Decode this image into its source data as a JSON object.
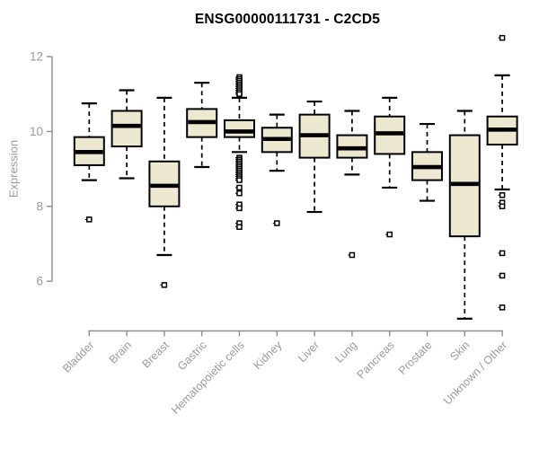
{
  "page": {
    "background": "#ffffff"
  },
  "chart_data": {
    "type": "boxplot",
    "title": "ENSG00000111731 - C2CD5",
    "ylabel": "Expression",
    "xlabel": "",
    "yticks": [
      6,
      8,
      10,
      12
    ],
    "y_axis_range": [
      6,
      12
    ],
    "grid": false,
    "legend": "none",
    "colors": {
      "box_fill": "#EDE8D0",
      "box_border": "#000000",
      "median": "#000000",
      "whisker": "#000000",
      "outlier_fill": "#ffffff",
      "axis": "#8f8f8f",
      "tick_text": "#9a9a9a",
      "title_text": "#000000"
    },
    "categories": [
      "Bladder",
      "Brain",
      "Breast",
      "Gastric",
      "Hematopoietic cells",
      "Kidney",
      "Liver",
      "Lung",
      "Pancreas",
      "Prostate",
      "Skin",
      "Unknown / Other"
    ],
    "boxes": [
      {
        "label": "Bladder",
        "whisker_low": 8.7,
        "q1": 9.1,
        "median": 9.45,
        "q3": 9.85,
        "whisker_high": 10.75,
        "outliers": [
          7.65
        ]
      },
      {
        "label": "Brain",
        "whisker_low": 8.75,
        "q1": 9.6,
        "median": 10.15,
        "q3": 10.55,
        "whisker_high": 11.1,
        "outliers": []
      },
      {
        "label": "Breast",
        "whisker_low": 6.7,
        "q1": 8.0,
        "median": 8.55,
        "q3": 9.2,
        "whisker_high": 10.9,
        "outliers": [
          5.9
        ]
      },
      {
        "label": "Gastric",
        "whisker_low": 9.05,
        "q1": 9.85,
        "median": 10.25,
        "q3": 10.6,
        "whisker_high": 11.3,
        "outliers": []
      },
      {
        "label": "Hematopoietic cells",
        "whisker_low": 9.45,
        "q1": 9.85,
        "median": 10.0,
        "q3": 10.3,
        "whisker_high": 10.9,
        "outliers": [
          11.45,
          11.4,
          11.35,
          11.3,
          11.25,
          11.2,
          11.15,
          11.1,
          11.05,
          11.0,
          9.3,
          9.25,
          9.2,
          9.15,
          9.1,
          9.05,
          9.0,
          8.95,
          8.9,
          8.85,
          8.8,
          8.75,
          8.7,
          8.5,
          8.35,
          8.05,
          7.95,
          7.55,
          7.45
        ]
      },
      {
        "label": "Kidney",
        "whisker_low": 8.95,
        "q1": 9.45,
        "median": 9.8,
        "q3": 10.1,
        "whisker_high": 10.45,
        "outliers": [
          7.55
        ]
      },
      {
        "label": "Liver",
        "whisker_low": 7.85,
        "q1": 9.3,
        "median": 9.9,
        "q3": 10.45,
        "whisker_high": 10.8,
        "outliers": []
      },
      {
        "label": "Lung",
        "whisker_low": 8.85,
        "q1": 9.3,
        "median": 9.55,
        "q3": 9.9,
        "whisker_high": 10.55,
        "outliers": [
          6.7
        ]
      },
      {
        "label": "Pancreas",
        "whisker_low": 8.5,
        "q1": 9.4,
        "median": 9.95,
        "q3": 10.4,
        "whisker_high": 10.9,
        "outliers": [
          7.25
        ]
      },
      {
        "label": "Prostate",
        "whisker_low": 8.15,
        "q1": 8.7,
        "median": 9.05,
        "q3": 9.45,
        "whisker_high": 10.2,
        "outliers": []
      },
      {
        "label": "Skin",
        "whisker_low": 5.0,
        "q1": 7.2,
        "median": 8.6,
        "q3": 9.9,
        "whisker_high": 10.55,
        "outliers": []
      },
      {
        "label": "Unknown / Other",
        "whisker_low": 8.45,
        "q1": 9.65,
        "median": 10.05,
        "q3": 10.4,
        "whisker_high": 11.5,
        "outliers": [
          12.5,
          8.3,
          8.1,
          8.0,
          6.75,
          6.15,
          5.3
        ]
      }
    ]
  }
}
